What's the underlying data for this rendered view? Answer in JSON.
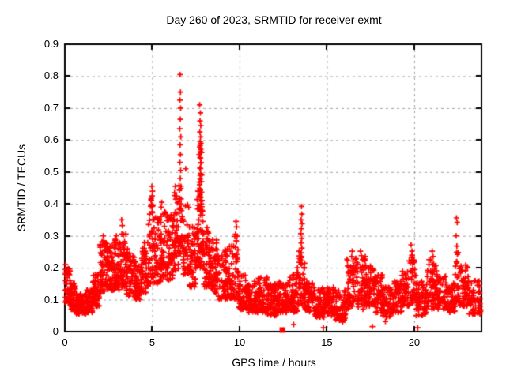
{
  "chart_data": {
    "type": "scatter",
    "title": "Day 260 of 2023, SRMTID for receiver exmt",
    "xlabel": "GPS time / hours",
    "ylabel": "SRMTID / TECUs",
    "xlim": [
      0,
      23.85
    ],
    "ylim": [
      0,
      0.9
    ],
    "xticks": [
      0,
      5,
      10,
      15,
      20
    ],
    "xtick_labels": [
      "0",
      "5",
      "10",
      "15",
      "20"
    ],
    "yticks": [
      0,
      0.1,
      0.2,
      0.3,
      0.4,
      0.5,
      0.6,
      0.7,
      0.8,
      0.9
    ],
    "ytick_labels": [
      "0",
      "0.1",
      "0.2",
      "0.3",
      "0.4",
      "0.5",
      "0.6",
      "0.7",
      "0.8",
      "0.9"
    ],
    "grid": {
      "show": true,
      "style": "dashed",
      "color": "#a0a0a0"
    },
    "axes_color": "#000000",
    "background_color": "#ffffff",
    "seed": 1260,
    "series": [
      {
        "name": "SRMTID",
        "color": "#ff0000",
        "marker": "plus",
        "peak_points": [
          [
            0.04,
            0.21
          ],
          [
            0.07,
            0.195
          ],
          [
            0.02,
            0.18
          ],
          [
            2.2,
            0.3
          ],
          [
            2.23,
            0.285
          ],
          [
            2.95,
            0.3
          ],
          [
            3.25,
            0.35
          ],
          [
            3.29,
            0.332
          ],
          [
            4.98,
            0.455
          ],
          [
            5.02,
            0.44
          ],
          [
            5.0,
            0.425
          ],
          [
            4.96,
            0.41
          ],
          [
            5.04,
            0.395
          ],
          [
            5.55,
            0.405
          ],
          [
            5.52,
            0.39
          ],
          [
            6.32,
            0.455
          ],
          [
            6.28,
            0.435
          ],
          [
            6.35,
            0.415
          ],
          [
            6.6,
            0.805
          ],
          [
            6.62,
            0.75
          ],
          [
            6.59,
            0.725
          ],
          [
            6.63,
            0.7
          ],
          [
            6.61,
            0.665
          ],
          [
            6.58,
            0.635
          ],
          [
            6.64,
            0.61
          ],
          [
            6.6,
            0.585
          ],
          [
            6.62,
            0.555
          ],
          [
            6.59,
            0.53
          ],
          [
            6.63,
            0.505
          ],
          [
            6.61,
            0.48
          ],
          [
            6.65,
            0.455
          ],
          [
            6.92,
            0.51
          ],
          [
            7.62,
            0.44
          ],
          [
            7.72,
            0.71
          ],
          [
            7.76,
            0.685
          ],
          [
            7.74,
            0.66
          ],
          [
            7.78,
            0.645
          ],
          [
            7.73,
            0.625
          ],
          [
            7.77,
            0.61
          ],
          [
            7.75,
            0.595
          ],
          [
            7.72,
            0.578
          ],
          [
            7.76,
            0.562
          ],
          [
            7.74,
            0.545
          ],
          [
            7.78,
            0.528
          ],
          [
            7.73,
            0.512
          ],
          [
            7.77,
            0.495
          ],
          [
            7.75,
            0.478
          ],
          [
            7.72,
            0.46
          ],
          [
            7.76,
            0.443
          ],
          [
            7.74,
            0.425
          ],
          [
            7.79,
            0.408
          ],
          [
            7.85,
            0.38
          ],
          [
            7.9,
            0.345
          ],
          [
            9.8,
            0.345
          ],
          [
            9.83,
            0.328
          ],
          [
            9.77,
            0.305
          ],
          [
            9.81,
            0.285
          ],
          [
            13.55,
            0.392
          ],
          [
            13.57,
            0.368
          ],
          [
            13.53,
            0.35
          ],
          [
            13.58,
            0.338
          ],
          [
            13.54,
            0.322
          ],
          [
            13.51,
            0.307
          ],
          [
            13.56,
            0.292
          ],
          [
            13.53,
            0.278
          ],
          [
            13.57,
            0.262
          ],
          [
            13.52,
            0.247
          ],
          [
            13.55,
            0.232
          ],
          [
            13.41,
            0.252
          ],
          [
            16.45,
            0.252
          ],
          [
            16.42,
            0.235
          ],
          [
            16.92,
            0.252
          ],
          [
            16.97,
            0.238
          ],
          [
            17.2,
            0.235
          ],
          [
            19.82,
            0.272
          ],
          [
            19.87,
            0.252
          ],
          [
            19.85,
            0.232
          ],
          [
            21.03,
            0.252
          ],
          [
            21.08,
            0.235
          ],
          [
            22.42,
            0.356
          ],
          [
            22.46,
            0.342
          ],
          [
            22.4,
            0.3
          ],
          [
            22.44,
            0.268
          ],
          [
            22.47,
            0.242
          ],
          [
            22.43,
            0.215
          ],
          [
            13.1,
            0.022
          ],
          [
            14.8,
            0.012
          ],
          [
            17.6,
            0.016
          ],
          [
            20.2,
            0.012
          ],
          [
            18.35,
            0.032
          ],
          [
            15.9,
            0.03
          ]
        ],
        "density_bins": [
          [
            0.0,
            0.3,
            0.09,
            0.2,
            45
          ],
          [
            0.3,
            0.6,
            0.07,
            0.16,
            40
          ],
          [
            0.6,
            1.2,
            0.055,
            0.12,
            85
          ],
          [
            1.2,
            1.6,
            0.06,
            0.13,
            50
          ],
          [
            1.6,
            2.0,
            0.08,
            0.18,
            50
          ],
          [
            2.0,
            2.4,
            0.12,
            0.29,
            55
          ],
          [
            2.4,
            2.8,
            0.13,
            0.27,
            55
          ],
          [
            2.8,
            3.2,
            0.13,
            0.29,
            55
          ],
          [
            3.2,
            3.5,
            0.14,
            0.32,
            40
          ],
          [
            3.5,
            4.0,
            0.11,
            0.26,
            55
          ],
          [
            4.0,
            4.4,
            0.1,
            0.22,
            50
          ],
          [
            4.4,
            4.8,
            0.12,
            0.28,
            50
          ],
          [
            4.8,
            5.1,
            0.15,
            0.42,
            40
          ],
          [
            5.1,
            5.5,
            0.15,
            0.36,
            50
          ],
          [
            5.5,
            5.8,
            0.17,
            0.39,
            40
          ],
          [
            5.8,
            6.2,
            0.16,
            0.37,
            50
          ],
          [
            6.2,
            6.5,
            0.19,
            0.43,
            40
          ],
          [
            6.5,
            6.75,
            0.24,
            0.46,
            32
          ],
          [
            6.75,
            7.1,
            0.18,
            0.4,
            42
          ],
          [
            7.1,
            7.5,
            0.14,
            0.34,
            48
          ],
          [
            7.5,
            7.9,
            0.2,
            0.42,
            55
          ],
          [
            7.68,
            7.84,
            0.42,
            0.6,
            20
          ],
          [
            7.9,
            8.3,
            0.14,
            0.33,
            55
          ],
          [
            8.3,
            8.8,
            0.12,
            0.29,
            58
          ],
          [
            8.8,
            9.3,
            0.1,
            0.26,
            55
          ],
          [
            9.3,
            9.7,
            0.1,
            0.27,
            45
          ],
          [
            9.7,
            9.95,
            0.1,
            0.3,
            28
          ],
          [
            9.95,
            10.4,
            0.07,
            0.18,
            52
          ],
          [
            10.4,
            11.0,
            0.06,
            0.16,
            70
          ],
          [
            11.0,
            11.6,
            0.06,
            0.17,
            70
          ],
          [
            11.6,
            12.2,
            0.05,
            0.15,
            70
          ],
          [
            12.2,
            12.8,
            0.06,
            0.16,
            70
          ],
          [
            12.8,
            13.3,
            0.06,
            0.18,
            60
          ],
          [
            13.3,
            13.75,
            0.08,
            0.24,
            45
          ],
          [
            13.75,
            14.3,
            0.06,
            0.16,
            62
          ],
          [
            14.3,
            14.9,
            0.045,
            0.14,
            65
          ],
          [
            14.9,
            15.5,
            0.05,
            0.14,
            65
          ],
          [
            15.5,
            16.1,
            0.035,
            0.13,
            65
          ],
          [
            16.1,
            16.6,
            0.07,
            0.23,
            55
          ],
          [
            16.6,
            17.2,
            0.07,
            0.23,
            60
          ],
          [
            17.2,
            17.7,
            0.08,
            0.21,
            55
          ],
          [
            17.7,
            18.2,
            0.06,
            0.18,
            55
          ],
          [
            18.2,
            18.7,
            0.045,
            0.14,
            55
          ],
          [
            18.7,
            19.3,
            0.06,
            0.16,
            60
          ],
          [
            19.3,
            19.7,
            0.08,
            0.19,
            45
          ],
          [
            19.7,
            20.1,
            0.09,
            0.24,
            42
          ],
          [
            20.1,
            20.7,
            0.05,
            0.16,
            60
          ],
          [
            20.7,
            21.3,
            0.07,
            0.23,
            58
          ],
          [
            21.3,
            21.9,
            0.07,
            0.18,
            58
          ],
          [
            21.9,
            22.35,
            0.06,
            0.16,
            48
          ],
          [
            22.35,
            22.6,
            0.09,
            0.25,
            25
          ],
          [
            22.6,
            23.1,
            0.08,
            0.21,
            55
          ],
          [
            23.1,
            23.8,
            0.055,
            0.16,
            70
          ]
        ]
      }
    ],
    "outlier_point": {
      "x": 12.45,
      "y": 0.005,
      "marker": "filled-square",
      "color": "#ff0000"
    }
  }
}
